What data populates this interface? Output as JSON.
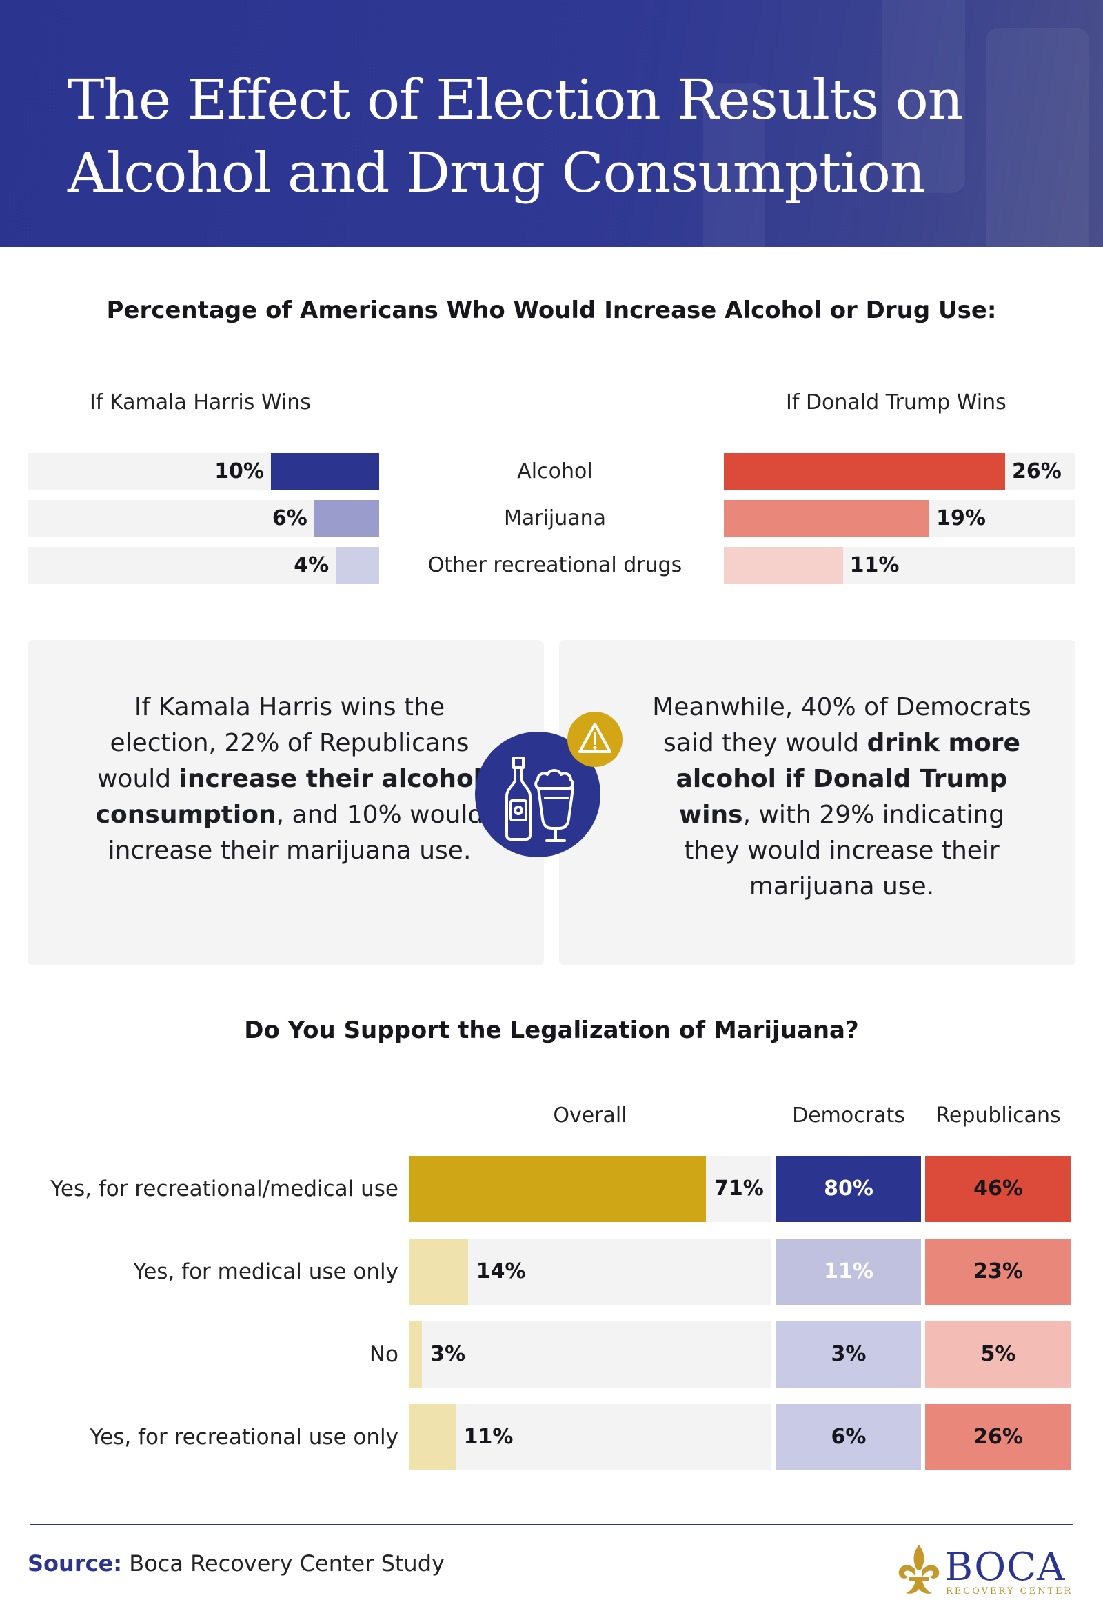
{
  "header": {
    "title_line1": "The Effect of Election Results on",
    "title_line2": "Alcohol and Drug Consumption"
  },
  "section1": {
    "heading": "Percentage of Americans Who Would Increase Alcohol or Drug Use:",
    "left_label": "If Kamala Harris Wins",
    "right_label": "If Donald Trump Wins"
  },
  "chart_data": [
    {
      "type": "bar",
      "title": "Percentage of Americans Who Would Increase Alcohol or Drug Use:",
      "categories": [
        "Alcohol",
        "Marijuana",
        "Other recreational drugs"
      ],
      "unit": "%",
      "series": [
        {
          "name": "If Kamala Harris Wins",
          "values": [
            10,
            6,
            4
          ],
          "labels": [
            "10%",
            "6%",
            "4%"
          ],
          "colors": [
            "#2b3590",
            "#9a9ccb",
            "#cdcfe6"
          ]
        },
        {
          "name": "If Donald Trump Wins",
          "values": [
            26,
            19,
            11
          ],
          "labels": [
            "26%",
            "19%",
            "11%"
          ],
          "colors": [
            "#dc4b39",
            "#e8877a",
            "#f6d0ca"
          ]
        }
      ],
      "xlim": [
        0,
        26
      ]
    },
    {
      "type": "bar",
      "title": "Do You Support the Legalization of Marijuana?",
      "categories": [
        "Yes, for recreational/medical use",
        "Yes, for medical use only",
        "No",
        "Yes, for recreational use only"
      ],
      "unit": "%",
      "series": [
        {
          "name": "Overall",
          "values": [
            71,
            14,
            3,
            11
          ],
          "labels": [
            "71%",
            "14%",
            "3%",
            "11%"
          ],
          "colors": [
            "#cea616",
            "#efe2ac",
            "#efe2ac",
            "#efe2ac"
          ]
        },
        {
          "name": "Democrats",
          "values": [
            80,
            11,
            3,
            6
          ],
          "labels": [
            "80%",
            "11%",
            "3%",
            "6%"
          ],
          "colors": [
            "#2b3590",
            "#c0c1df",
            "#c9cae5",
            "#c9cae5"
          ],
          "text_colors": [
            "#ffffff",
            "#ffffff",
            "#16161c",
            "#16161c"
          ]
        },
        {
          "name": "Republicans",
          "values": [
            46,
            23,
            5,
            26
          ],
          "labels": [
            "46%",
            "23%",
            "5%",
            "26%"
          ],
          "colors": [
            "#dc4b39",
            "#e9877b",
            "#f3bcb4",
            "#e9877b"
          ]
        }
      ],
      "xlim": [
        0,
        82
      ]
    }
  ],
  "cards": {
    "left": {
      "t1": "If Kamala Harris wins the election, 22% of Republicans would ",
      "b1": "increase their alcohol consumption",
      "t2": ", and 10% would increase their marijuana use."
    },
    "right": {
      "t1": "Meanwhile, 40% of Democrats said they would ",
      "b1": "drink more alcohol if Donald Trump wins",
      "t2": ", with 29% indicating they would increase their marijuana use."
    }
  },
  "icons": {
    "center": "bottle-and-beer-glass-icon",
    "badge": "warning-triangle-icon",
    "logo": "fleur-de-lis-icon"
  },
  "colors": {
    "navy": "#2b3590",
    "red": "#dc4b39",
    "gold": "#cea616",
    "panel": "#f4f4f4"
  },
  "section2": {
    "heading": "Do You Support the Legalization of Marijuana?"
  },
  "footer": {
    "source_label": "Source:",
    "source_text": "Boca Recovery Center Study",
    "logo_name": "BOCA",
    "logo_sub": "RECOVERY CENTER"
  }
}
